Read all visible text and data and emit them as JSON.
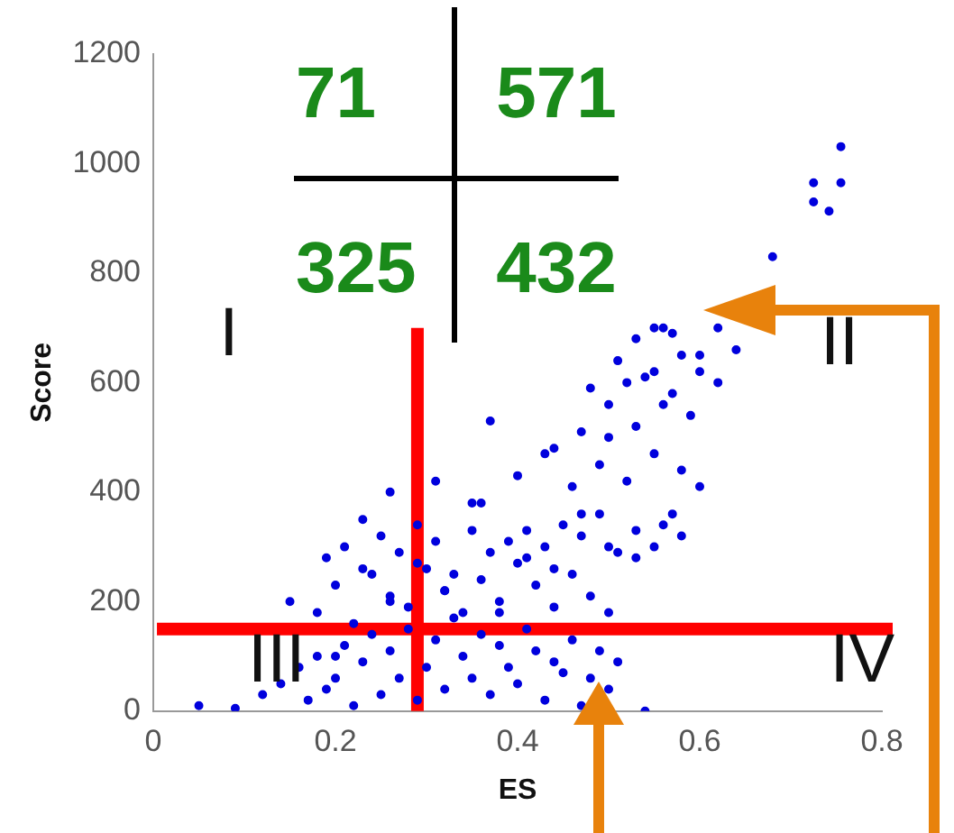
{
  "chart_data": {
    "type": "scatter",
    "xlabel": "ES",
    "ylabel": "Score",
    "xlim": [
      0,
      0.8
    ],
    "ylim": [
      0,
      1200
    ],
    "xticks": [
      0,
      0.2,
      0.4,
      0.6,
      0.8
    ],
    "yticks": [
      0,
      200,
      400,
      600,
      800,
      1000,
      1200
    ],
    "grid": false,
    "legend": false,
    "marker": "circle",
    "series": [
      {
        "color": "#0000dd",
        "x": [
          0.05,
          0.09,
          0.12,
          0.14,
          0.16,
          0.17,
          0.18,
          0.19,
          0.2,
          0.21,
          0.22,
          0.23,
          0.24,
          0.25,
          0.26,
          0.27,
          0.28,
          0.29,
          0.3,
          0.31,
          0.32,
          0.33,
          0.34,
          0.35,
          0.36,
          0.37,
          0.38,
          0.39,
          0.4,
          0.41,
          0.42,
          0.43,
          0.44,
          0.45,
          0.46,
          0.47,
          0.48,
          0.49,
          0.5,
          0.51,
          0.54,
          0.15,
          0.18,
          0.2,
          0.22,
          0.24,
          0.26,
          0.28,
          0.3,
          0.32,
          0.34,
          0.36,
          0.38,
          0.4,
          0.42,
          0.44,
          0.46,
          0.48,
          0.5,
          0.19,
          0.21,
          0.23,
          0.25,
          0.27,
          0.29,
          0.31,
          0.33,
          0.35,
          0.37,
          0.39,
          0.41,
          0.43,
          0.45,
          0.47,
          0.49,
          0.51,
          0.53,
          0.55,
          0.57,
          0.2,
          0.23,
          0.26,
          0.29,
          0.32,
          0.35,
          0.38,
          0.41,
          0.44,
          0.47,
          0.5,
          0.53,
          0.56,
          0.58,
          0.26,
          0.31,
          0.36,
          0.4,
          0.43,
          0.46,
          0.49,
          0.52,
          0.55,
          0.58,
          0.6,
          0.37,
          0.44,
          0.47,
          0.5,
          0.53,
          0.56,
          0.59,
          0.62,
          0.48,
          0.51,
          0.54,
          0.57,
          0.6,
          0.5,
          0.53,
          0.55,
          0.57,
          0.52,
          0.55,
          0.56,
          0.58,
          0.6,
          0.64,
          0.62,
          0.68,
          0.725,
          0.725,
          0.742,
          0.755,
          0.755
        ],
        "values": [
          10,
          5,
          30,
          50,
          80,
          20,
          100,
          40,
          60,
          120,
          10,
          90,
          140,
          30,
          110,
          60,
          150,
          20,
          80,
          130,
          40,
          170,
          100,
          60,
          140,
          30,
          120,
          80,
          50,
          150,
          110,
          20,
          90,
          70,
          130,
          10,
          60,
          110,
          40,
          90,
          0,
          200,
          180,
          230,
          160,
          250,
          210,
          190,
          260,
          220,
          180,
          240,
          200,
          270,
          230,
          190,
          250,
          210,
          180,
          280,
          300,
          260,
          320,
          290,
          270,
          310,
          250,
          330,
          290,
          310,
          280,
          300,
          340,
          320,
          360,
          290,
          330,
          300,
          360,
          100,
          350,
          200,
          340,
          220,
          380,
          180,
          330,
          260,
          360,
          300,
          280,
          340,
          320,
          400,
          420,
          380,
          430,
          470,
          410,
          450,
          420,
          470,
          440,
          410,
          530,
          480,
          510,
          560,
          520,
          560,
          540,
          600,
          590,
          640,
          610,
          580,
          650,
          500,
          680,
          700,
          690,
          600,
          620,
          700,
          650,
          620,
          660,
          700,
          830,
          965,
          930,
          913,
          965,
          1031
        ]
      }
    ],
    "ref_lines": [
      {
        "axis": "x",
        "value": 0.29,
        "color": "#ff0000"
      },
      {
        "axis": "y",
        "value": 150,
        "color": "#ff0000"
      }
    ],
    "annotations": [
      "71",
      "571",
      "325",
      "432",
      "I",
      "II",
      "III",
      "IV"
    ]
  }
}
